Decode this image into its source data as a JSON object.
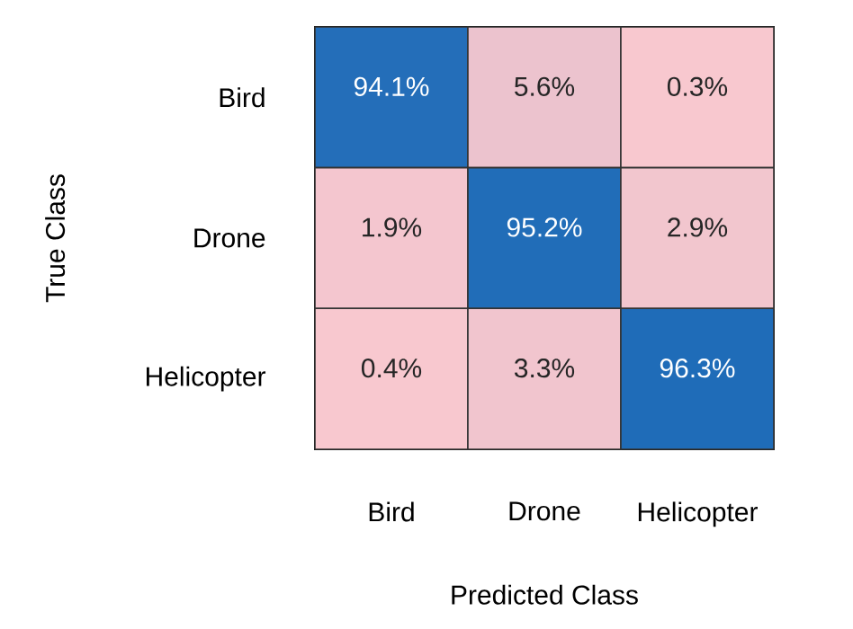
{
  "chart_data": {
    "type": "heatmap",
    "xlabel": "Predicted Class",
    "ylabel": "True Class",
    "categories": [
      "Bird",
      "Drone",
      "Helicopter"
    ],
    "y_categories": [
      "Bird",
      "Drone",
      "Helicopter"
    ],
    "cells": [
      [
        94.1,
        5.6,
        0.3
      ],
      [
        1.9,
        95.2,
        2.9
      ],
      [
        0.4,
        3.3,
        96.3
      ]
    ],
    "cell_labels": [
      [
        "94.1%",
        "5.6%",
        "0.3%"
      ],
      [
        "1.9%",
        "95.2%",
        "2.9%"
      ],
      [
        "0.4%",
        "3.3%",
        "96.3%"
      ]
    ],
    "colors": [
      "#f8c8cf",
      "#1f6cb8"
    ]
  }
}
